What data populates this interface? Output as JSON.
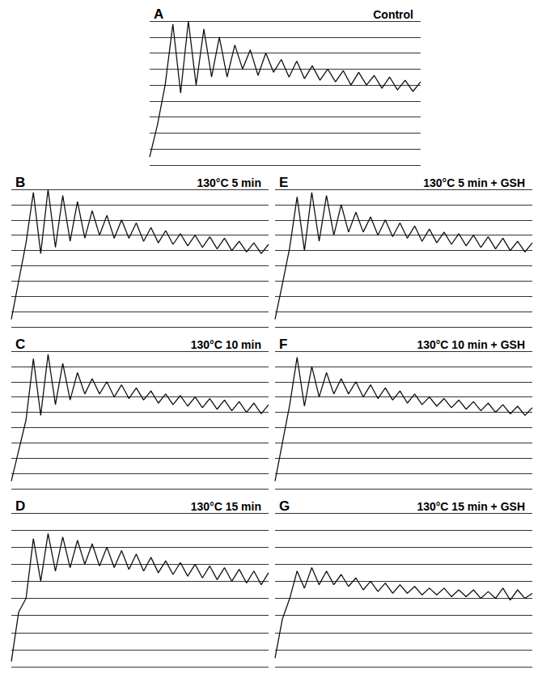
{
  "chart_data": [
    {
      "type": "line",
      "title": "A",
      "subtitle": "Control",
      "grid": true,
      "tick_labels": false,
      "color": "#111111",
      "xlim": [
        0,
        35
      ],
      "ylim": [
        0,
        9
      ],
      "yticks": [
        0,
        1,
        2,
        3,
        4,
        5,
        6,
        7,
        8,
        9
      ],
      "values": [
        0.5,
        2.5,
        5,
        8.8,
        4.5,
        9,
        5,
        8.5,
        5.5,
        8,
        5.5,
        7.5,
        6,
        7.2,
        5.6,
        7,
        5.8,
        6.6,
        5.5,
        6.5,
        5.4,
        6.2,
        5.3,
        6,
        5.2,
        5.9,
        5,
        5.8,
        5,
        5.6,
        4.8,
        5.5,
        4.7,
        5.3,
        4.6,
        5.2
      ]
    },
    {
      "type": "line",
      "title": "B",
      "subtitle": "130°C 5 min",
      "grid": true,
      "tick_labels": false,
      "color": "#111111",
      "xlim": [
        0,
        35
      ],
      "ylim": [
        0,
        9
      ],
      "yticks": [
        0,
        1,
        2,
        3,
        4,
        5,
        6,
        7,
        8,
        9
      ],
      "values": [
        0.5,
        3,
        5.5,
        8.8,
        4.8,
        9,
        5.2,
        8.6,
        5.6,
        8.2,
        5.8,
        7.6,
        6,
        7.3,
        5.8,
        7,
        5.8,
        6.8,
        5.6,
        6.5,
        5.5,
        6.3,
        5.4,
        6.1,
        5.3,
        6,
        5.2,
        5.9,
        5.1,
        5.8,
        5,
        5.6,
        4.9,
        5.5,
        4.8,
        5.4
      ]
    },
    {
      "type": "line",
      "title": "C",
      "subtitle": "130°C 10 min",
      "grid": true,
      "tick_labels": false,
      "color": "#111111",
      "xlim": [
        0,
        35
      ],
      "ylim": [
        0,
        9
      ],
      "yticks": [
        0,
        1,
        2,
        3,
        4,
        5,
        6,
        7,
        8,
        9
      ],
      "values": [
        0.5,
        2.5,
        4.5,
        8.5,
        4.8,
        8.8,
        5.5,
        8.2,
        5.8,
        7.6,
        6.2,
        7.2,
        6.2,
        7,
        6,
        6.8,
        5.9,
        6.6,
        5.8,
        6.4,
        5.6,
        6.2,
        5.5,
        6.1,
        5.4,
        6,
        5.3,
        5.9,
        5.2,
        5.8,
        5.1,
        5.7,
        5,
        5.6,
        4.9,
        5.5
      ]
    },
    {
      "type": "line",
      "title": "D",
      "subtitle": "130°C 15 min",
      "grid": true,
      "tick_labels": false,
      "color": "#111111",
      "xlim": [
        0,
        35
      ],
      "ylim": [
        0,
        9
      ],
      "yticks": [
        0,
        1,
        2,
        3,
        4,
        5,
        6,
        7,
        8,
        9
      ],
      "values": [
        0.3,
        3.2,
        4,
        7.5,
        5,
        7.8,
        5.6,
        7.6,
        5.8,
        7.4,
        6,
        7.2,
        5.9,
        7,
        5.8,
        6.8,
        5.7,
        6.6,
        5.6,
        6.4,
        5.5,
        6.2,
        5.4,
        6.1,
        5.3,
        6,
        5.2,
        5.9,
        5.1,
        5.8,
        5,
        5.7,
        4.9,
        5.6,
        4.8,
        5.5
      ]
    },
    {
      "type": "line",
      "title": "E",
      "subtitle": "130°C 5 min + GSH",
      "grid": true,
      "tick_labels": false,
      "color": "#111111",
      "xlim": [
        0,
        35
      ],
      "ylim": [
        0,
        9
      ],
      "yticks": [
        0,
        1,
        2,
        3,
        4,
        5,
        6,
        7,
        8,
        9
      ],
      "values": [
        0.5,
        2.8,
        5.2,
        8.5,
        5,
        8.8,
        5.6,
        8.6,
        6,
        8,
        6.2,
        7.5,
        6.2,
        7.2,
        6,
        7,
        5.9,
        6.8,
        5.8,
        6.6,
        5.6,
        6.4,
        5.5,
        6.2,
        5.4,
        6.1,
        5.3,
        6,
        5.2,
        5.9,
        5.1,
        5.8,
        5,
        5.6,
        4.9,
        5.5
      ]
    },
    {
      "type": "line",
      "title": "F",
      "subtitle": "130°C 10 min + GSH",
      "grid": true,
      "tick_labels": false,
      "color": "#111111",
      "xlim": [
        0,
        35
      ],
      "ylim": [
        0,
        9
      ],
      "yticks": [
        0,
        1,
        2,
        3,
        4,
        5,
        6,
        7,
        8,
        9
      ],
      "values": [
        0.5,
        3,
        5.5,
        8.6,
        5.4,
        8,
        6,
        7.6,
        6.2,
        7.2,
        6.2,
        7,
        6,
        6.8,
        5.9,
        6.6,
        5.8,
        6.4,
        5.6,
        6.2,
        5.5,
        6,
        5.4,
        5.9,
        5.3,
        5.8,
        5.2,
        5.7,
        5.1,
        5.6,
        5,
        5.5,
        4.9,
        5.4,
        4.8,
        5.3
      ]
    },
    {
      "type": "line",
      "title": "G",
      "subtitle": "130°C 15 min + GSH",
      "grid": true,
      "tick_labels": false,
      "color": "#111111",
      "xlim": [
        0,
        35
      ],
      "ylim": [
        0,
        9
      ],
      "yticks": [
        0,
        1,
        2,
        3,
        4,
        5,
        6,
        7,
        8,
        9
      ],
      "values": [
        0.5,
        2.8,
        4,
        5.6,
        4.6,
        5.8,
        4.8,
        5.6,
        4.8,
        5.4,
        4.7,
        5.2,
        4.5,
        5,
        4.4,
        4.9,
        4.3,
        4.8,
        4.3,
        4.7,
        4.2,
        4.6,
        4.2,
        4.6,
        4.1,
        4.5,
        4.1,
        4.5,
        4,
        4.4,
        4,
        4.6,
        3.9,
        4.5,
        4,
        4.3
      ]
    }
  ]
}
